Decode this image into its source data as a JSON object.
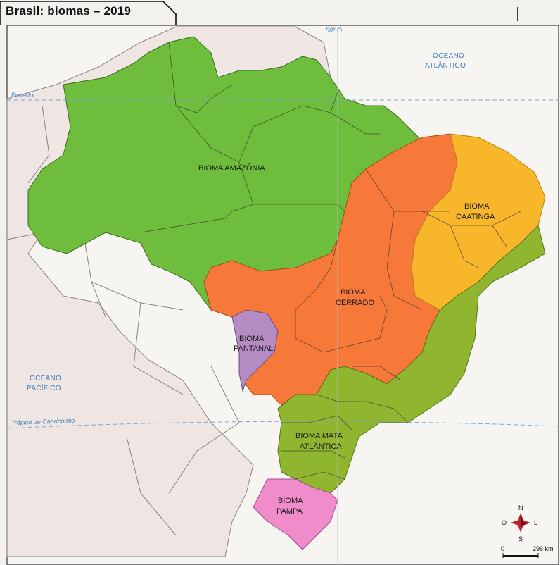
{
  "title": "Brasil: biomas – 2019",
  "meridian_label": "50° O",
  "equator_label": "Equador",
  "capricorn_label": "Trópico de Capricórnio",
  "oceans": {
    "atlantic": [
      "OCEANO",
      "ATLÂNTICO"
    ],
    "pacific": [
      "OCEANO",
      "PACÍFICO"
    ]
  },
  "biomes": {
    "amazonia": {
      "label": [
        "BIOMA AMAZÔNIA"
      ],
      "color": "#6fbd3c"
    },
    "caatinga": {
      "label": [
        "BIOMA",
        "CAATINGA"
      ],
      "color": "#f8b62a"
    },
    "cerrado": {
      "label": [
        "BIOMA",
        "CERRADO"
      ],
      "color": "#f7793a"
    },
    "pantanal": {
      "label": [
        "BIOMA",
        "PANTANAL"
      ],
      "color": "#b58bc4"
    },
    "mata_atlantica": {
      "label": [
        "BIOMA MATA",
        "ATLÂNTICA"
      ],
      "color": "#8fb62e"
    },
    "pampa": {
      "label": [
        "BIOMA",
        "PAMPA"
      ],
      "color": "#ef8cc9"
    }
  },
  "compass": {
    "n": "N",
    "s": "S",
    "l": "L",
    "o": "O"
  },
  "scale": {
    "start": "0",
    "end": "296 km"
  }
}
